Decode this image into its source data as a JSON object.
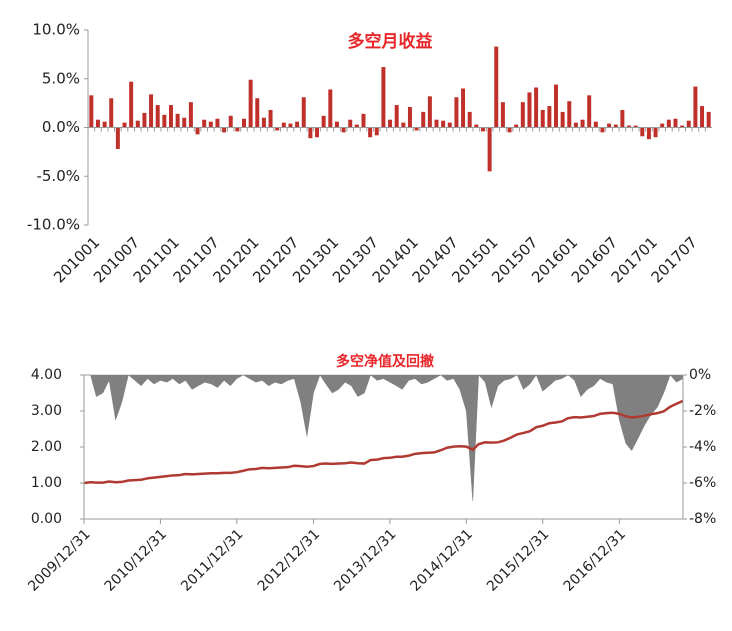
{
  "chart_data": [
    {
      "type": "bar",
      "title": "多空月收益",
      "color": "#c0302a",
      "categories": [
        "201001",
        null,
        null,
        null,
        null,
        null,
        "201007",
        null,
        null,
        null,
        null,
        null,
        "201101",
        null,
        null,
        null,
        null,
        null,
        "201107",
        null,
        null,
        null,
        null,
        null,
        "201201",
        null,
        null,
        null,
        null,
        null,
        "201207",
        null,
        null,
        null,
        null,
        null,
        "201301",
        null,
        null,
        null,
        null,
        null,
        "201307",
        null,
        null,
        null,
        null,
        null,
        "201401",
        null,
        null,
        null,
        null,
        null,
        "201407",
        null,
        null,
        null,
        null,
        null,
        "201501",
        null,
        null,
        null,
        null,
        null,
        "201507",
        null,
        null,
        null,
        null,
        null,
        "201601",
        null,
        null,
        null,
        null,
        null,
        "201607",
        null,
        null,
        null,
        null,
        null,
        "201701",
        null,
        null,
        null,
        null,
        null,
        "201707",
        null,
        null,
        null
      ],
      "values": [
        3.3,
        0.8,
        0.6,
        3.0,
        -2.2,
        0.5,
        4.7,
        0.7,
        1.5,
        3.4,
        2.3,
        1.3,
        2.3,
        1.4,
        1.0,
        2.6,
        -0.7,
        0.8,
        0.6,
        0.9,
        -0.5,
        1.2,
        -0.4,
        0.9,
        4.9,
        3.0,
        1.0,
        1.8,
        -0.3,
        0.5,
        0.4,
        0.6,
        3.1,
        -1.1,
        -1.0,
        1.2,
        3.9,
        0.6,
        -0.5,
        0.8,
        0.3,
        1.4,
        -1.0,
        -0.8,
        6.2,
        0.8,
        2.3,
        0.5,
        2.1,
        -0.3,
        1.6,
        3.2,
        0.8,
        0.7,
        0.5,
        3.1,
        4.0,
        1.6,
        0.3,
        -0.4,
        -4.5,
        8.3,
        2.6,
        -0.5,
        0.3,
        2.6,
        3.6,
        4.1,
        1.8,
        2.2,
        4.4,
        1.6,
        2.7,
        0.5,
        0.8,
        3.3,
        0.6,
        -0.5,
        0.4,
        0.3,
        1.8,
        0.2,
        0.2,
        -0.9,
        -1.2,
        -1.0,
        0.4,
        0.8,
        0.9,
        0.2,
        0.7,
        4.2,
        2.2,
        1.6
      ],
      "ylim": [
        -10,
        10
      ],
      "yticks": [
        {
          "value": -10,
          "label": "-10.0%"
        },
        {
          "value": -5,
          "label": "-5.0%"
        },
        {
          "value": 0,
          "label": "0.0%"
        },
        {
          "value": 5,
          "label": "5.0%"
        },
        {
          "value": 10,
          "label": "10.0%"
        }
      ]
    },
    {
      "type": "line",
      "title": "多空净值及回撤",
      "x": [
        "2009/12/31",
        "2010/01/31",
        "2010/02/28",
        "2010/03/31",
        "2010/04/30",
        "2010/05/31",
        "2010/06/30",
        "2010/07/31",
        "2010/08/31",
        "2010/09/30",
        "2010/10/31",
        "2010/11/30",
        "2010/12/31",
        "2011/01/31",
        "2011/02/28",
        "2011/03/31",
        "2011/04/30",
        "2011/05/31",
        "2011/06/30",
        "2011/07/31",
        "2011/08/31",
        "2011/09/30",
        "2011/10/31",
        "2011/11/30",
        "2011/12/31",
        "2012/01/31",
        "2012/02/29",
        "2012/03/31",
        "2012/04/30",
        "2012/05/31",
        "2012/06/30",
        "2012/07/31",
        "2012/08/31",
        "2012/09/30",
        "2012/10/31",
        "2012/11/30",
        "2012/12/31",
        "2013/01/31",
        "2013/02/28",
        "2013/03/31",
        "2013/04/30",
        "2013/05/31",
        "2013/06/30",
        "2013/07/31",
        "2013/08/31",
        "2013/09/30",
        "2013/10/31",
        "2013/11/30",
        "2013/12/31",
        "2014/01/31",
        "2014/02/28",
        "2014/03/31",
        "2014/04/30",
        "2014/05/31",
        "2014/06/30",
        "2014/07/31",
        "2014/08/31",
        "2014/09/30",
        "2014/10/31",
        "2014/11/30",
        "2014/12/31",
        "2015/01/31",
        "2015/02/28",
        "2015/03/31",
        "2015/04/30",
        "2015/05/31",
        "2015/06/30",
        "2015/07/31",
        "2015/08/31",
        "2015/09/30",
        "2015/10/31",
        "2015/11/30",
        "2015/12/31",
        "2016/01/31",
        "2016/02/29",
        "2016/03/31",
        "2016/04/30",
        "2016/05/31",
        "2016/06/30",
        "2016/07/31",
        "2016/08/31",
        "2016/09/30",
        "2016/10/31",
        "2016/11/30",
        "2016/12/31",
        "2017/01/31",
        "2017/02/28",
        "2017/03/31",
        "2017/04/30",
        "2017/05/31",
        "2017/06/30",
        "2017/07/31",
        "2017/08/31",
        "2017/09/30",
        "2017/10/31"
      ],
      "series": [
        {
          "color": "#b03a32",
          "values": [
            1.0,
            1.02,
            1.01,
            1.01,
            1.04,
            1.02,
            1.03,
            1.07,
            1.08,
            1.09,
            1.13,
            1.15,
            1.17,
            1.19,
            1.21,
            1.22,
            1.25,
            1.24,
            1.25,
            1.26,
            1.27,
            1.27,
            1.28,
            1.28,
            1.3,
            1.34,
            1.38,
            1.39,
            1.42,
            1.41,
            1.42,
            1.43,
            1.44,
            1.48,
            1.47,
            1.45,
            1.47,
            1.53,
            1.54,
            1.53,
            1.54,
            1.55,
            1.57,
            1.55,
            1.54,
            1.64,
            1.65,
            1.69,
            1.7,
            1.73,
            1.73,
            1.76,
            1.81,
            1.83,
            1.84,
            1.85,
            1.91,
            1.98,
            2.01,
            2.02,
            2.01,
            1.92,
            2.08,
            2.13,
            2.12,
            2.13,
            2.18,
            2.26,
            2.35,
            2.39,
            2.44,
            2.55,
            2.59,
            2.66,
            2.68,
            2.71,
            2.8,
            2.83,
            2.82,
            2.84,
            2.86,
            2.92,
            2.94,
            2.95,
            2.92,
            2.85,
            2.82,
            2.84,
            2.87,
            2.91,
            2.94,
            2.99,
            3.12,
            3.2,
            3.28
          ]
        },
        {
          "type": "area",
          "axis": "y2",
          "color": "#808080",
          "values": [
            0,
            0,
            -1.2,
            -1.0,
            -0.3,
            -2.5,
            -1.5,
            0,
            -0.3,
            -0.6,
            -0.2,
            -0.5,
            -0.3,
            -0.4,
            -0.2,
            -0.5,
            -0.3,
            -0.8,
            -0.6,
            -0.4,
            -0.5,
            -0.7,
            -0.3,
            -0.6,
            -0.2,
            0,
            -0.2,
            -0.4,
            -0.3,
            -0.6,
            -0.4,
            -0.5,
            -0.3,
            -0.2,
            -1.5,
            -3.4,
            -1.0,
            0,
            -0.5,
            -1.0,
            -0.8,
            -0.4,
            -0.6,
            -1.2,
            -1.0,
            0,
            -0.3,
            -0.2,
            -0.4,
            -0.6,
            -0.8,
            -0.3,
            -0.2,
            -0.5,
            -0.4,
            -0.2,
            0,
            -0.3,
            -0.2,
            -0.8,
            -2.0,
            -7.0,
            0,
            -0.4,
            -1.8,
            -0.6,
            -0.3,
            -0.2,
            0,
            -0.8,
            -0.5,
            0,
            -0.9,
            -0.6,
            -0.3,
            -0.2,
            0,
            -0.3,
            -1.2,
            -0.8,
            -0.6,
            -0.2,
            -0.4,
            -0.5,
            -2.5,
            -3.8,
            -4.2,
            -3.5,
            -2.8,
            -2.2,
            -1.8,
            -1.0,
            0,
            -0.4,
            -0.2
          ]
        }
      ],
      "xlim": [
        "2009/12/31",
        "2017/10/31"
      ],
      "xticks": [
        "2009/12/31",
        "2010/12/31",
        "2011/12/31",
        "2012/12/31",
        "2013/12/31",
        "2014/12/31",
        "2015/12/31",
        "2016/12/31"
      ],
      "ylim": [
        0,
        4
      ],
      "yticks": [
        {
          "value": 0,
          "label": "0.00"
        },
        {
          "value": 1,
          "label": "1.00"
        },
        {
          "value": 2,
          "label": "2.00"
        },
        {
          "value": 3,
          "label": "3.00"
        },
        {
          "value": 4,
          "label": "4.00"
        }
      ],
      "y2lim": [
        -8,
        0
      ],
      "y2ticks": [
        {
          "value": -8,
          "label": "-8%"
        },
        {
          "value": -6,
          "label": "-6%"
        },
        {
          "value": -4,
          "label": "-4%"
        },
        {
          "value": -2,
          "label": "-2%"
        },
        {
          "value": 0,
          "label": "0%"
        }
      ]
    }
  ]
}
